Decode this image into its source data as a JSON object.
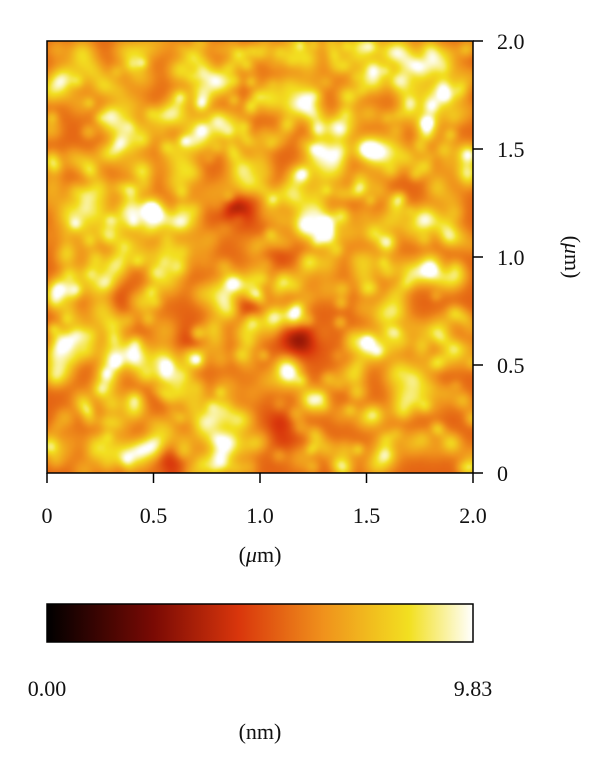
{
  "chart_data": {
    "type": "heatmap",
    "title": "",
    "x_axis": {
      "label_prefix": "(",
      "label_mu": "μ",
      "label_suffix": "m)",
      "range": [
        0,
        2.0
      ],
      "ticks": [
        0,
        0.5,
        1.0,
        1.5,
        2.0
      ],
      "tick_labels": [
        "0",
        "0.5",
        "1.0",
        "1.5",
        "2.0"
      ]
    },
    "y_axis": {
      "label_prefix": "(",
      "label_mu": "μ",
      "label_suffix": "m)",
      "position": "right",
      "range": [
        0,
        2.0
      ],
      "ticks": [
        0,
        0.5,
        1.0,
        1.5,
        2.0
      ],
      "tick_labels": [
        "0",
        "0.5",
        "1.0",
        "1.5",
        "2.0"
      ]
    },
    "colorbar": {
      "min": 0.0,
      "max": 9.83,
      "min_label": "0.00",
      "max_label": "9.83",
      "unit_label": "(nm)",
      "colormap_stops": [
        {
          "value": 0.0,
          "color": "#000000"
        },
        {
          "value": 0.25,
          "color": "#7a0a04"
        },
        {
          "value": 0.45,
          "color": "#d9360c"
        },
        {
          "value": 0.65,
          "color": "#f0921c"
        },
        {
          "value": 0.85,
          "color": "#f2e020"
        },
        {
          "value": 1.0,
          "color": "#ffffff"
        }
      ]
    },
    "surface": {
      "description_keys": [
        "granular height map"
      ],
      "mean_height_nm": 6.2,
      "dark_features": [
        {
          "x": 0.88,
          "y": 1.22,
          "depth": 0.55
        },
        {
          "x": 1.05,
          "y": 1.05,
          "depth": 0.5
        },
        {
          "x": 0.95,
          "y": 0.8,
          "depth": 0.55
        },
        {
          "x": 0.7,
          "y": 0.62,
          "depth": 0.45
        },
        {
          "x": 1.18,
          "y": 0.62,
          "depth": 0.55
        },
        {
          "x": 1.1,
          "y": 0.2,
          "depth": 0.4
        },
        {
          "x": 0.55,
          "y": 0.05,
          "depth": 0.35
        },
        {
          "x": 0.35,
          "y": 0.8,
          "depth": 0.3
        },
        {
          "x": 1.85,
          "y": 0.35,
          "depth": 0.25
        }
      ],
      "bright_features": [
        {
          "x": 1.78,
          "y": 1.88,
          "height": 0.95
        },
        {
          "x": 1.5,
          "y": 1.85,
          "height": 0.8
        },
        {
          "x": 0.13,
          "y": 1.18,
          "height": 0.9
        },
        {
          "x": 0.45,
          "y": 1.4,
          "height": 0.8
        },
        {
          "x": 1.28,
          "y": 1.15,
          "height": 0.85
        },
        {
          "x": 1.52,
          "y": 1.35,
          "height": 0.8
        },
        {
          "x": 1.6,
          "y": 0.6,
          "height": 0.9
        },
        {
          "x": 1.85,
          "y": 1.15,
          "height": 0.8
        },
        {
          "x": 1.3,
          "y": 0.95,
          "height": 0.7
        },
        {
          "x": 0.85,
          "y": 0.15,
          "height": 0.75
        }
      ]
    }
  }
}
